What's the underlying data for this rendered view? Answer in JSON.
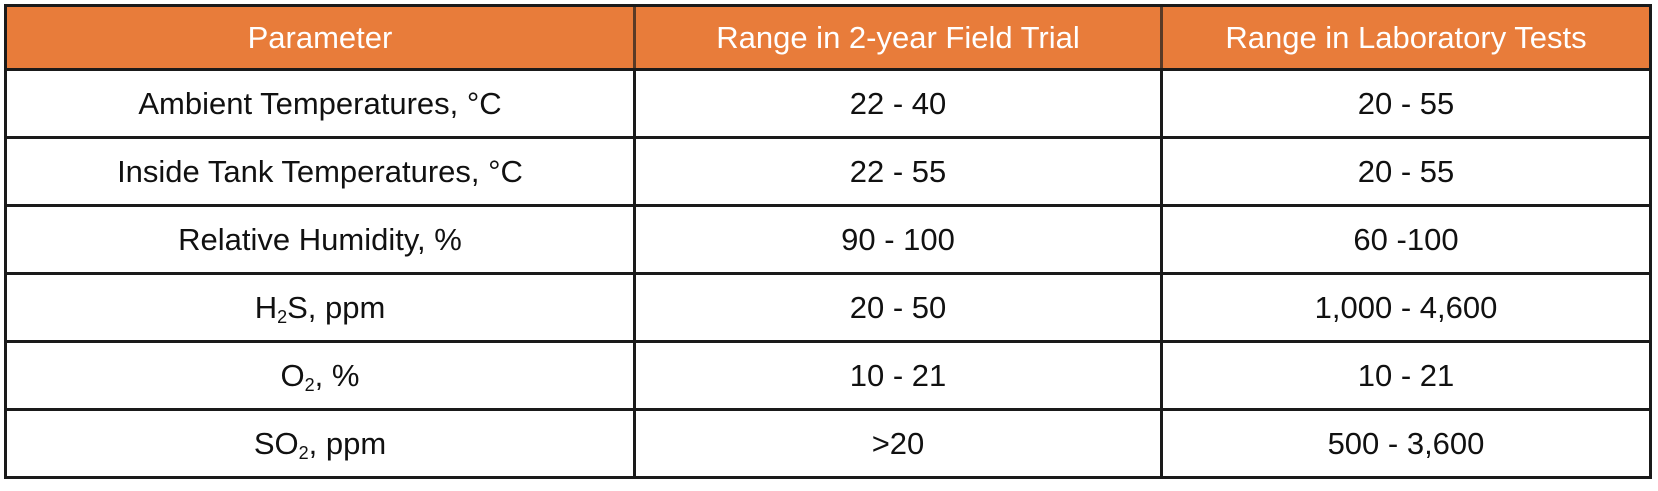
{
  "table": {
    "headers": [
      "Parameter",
      "Range in 2-year Field Trial",
      "Range in Laboratory Tests"
    ],
    "rows": [
      {
        "parameter": {
          "pre": "Ambient Temperatures, °C",
          "sub": "",
          "post": ""
        },
        "field": "22 - 40",
        "lab": "20 - 55"
      },
      {
        "parameter": {
          "pre": "Inside Tank Temperatures, °C",
          "sub": "",
          "post": ""
        },
        "field": "22 - 55",
        "lab": "20 - 55"
      },
      {
        "parameter": {
          "pre": "Relative Humidity, %",
          "sub": "",
          "post": ""
        },
        "field": "90 - 100",
        "lab": "60 -100"
      },
      {
        "parameter": {
          "pre": "H",
          "sub": "2",
          "post": "S, ppm"
        },
        "field": "20 - 50",
        "lab": "1,000 - 4,600"
      },
      {
        "parameter": {
          "pre": "O",
          "sub": "2",
          "post": ", %"
        },
        "field": "10 - 21",
        "lab": "10 - 21"
      },
      {
        "parameter": {
          "pre": "SO",
          "sub": "2",
          "post": ", ppm"
        },
        "field": ">20",
        "lab": "500 - 3,600"
      }
    ]
  }
}
